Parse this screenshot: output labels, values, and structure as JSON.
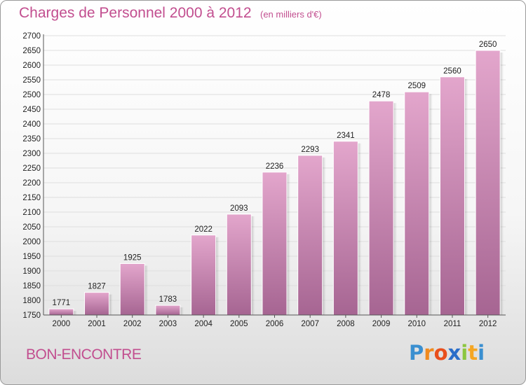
{
  "header": {
    "title": "Charges de Personnel 2000 à 2012",
    "subtitle": "(en milliers d'€)"
  },
  "footer": {
    "place": "BON-ENCONTRE",
    "logo": {
      "letters": [
        "P",
        "r",
        "o",
        "x",
        "i",
        "t",
        "i"
      ]
    }
  },
  "colors": {
    "accent": "#c24e8f",
    "bar_top": "#e3a6cc",
    "bar_bottom": "#a66592",
    "grid": "#dedede",
    "logo_letters": [
      "#3a8fd0",
      "#f08a1e",
      "#e94f1c",
      "#2a6dc9",
      "#8cc63f",
      "#f5a623",
      "#3a8fd0"
    ]
  },
  "chart_data": {
    "type": "bar",
    "categories": [
      "2000",
      "2001",
      "2002",
      "2003",
      "2004",
      "2005",
      "2006",
      "2007",
      "2008",
      "2009",
      "2010",
      "2011",
      "2012"
    ],
    "values": [
      1771,
      1827,
      1925,
      1783,
      2022,
      2093,
      2236,
      2293,
      2341,
      2478,
      2509,
      2560,
      2650
    ],
    "title": "Charges de Personnel 2000 à 2012",
    "subtitle": "(en milliers d'€)",
    "ylim": [
      1750,
      2700
    ],
    "ytick_step": 50,
    "grid": true,
    "legend": "none"
  }
}
